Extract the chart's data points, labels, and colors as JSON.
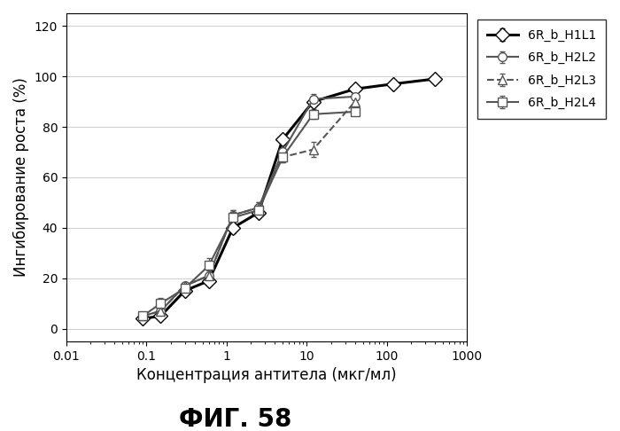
{
  "title": "ФИГ. 58",
  "xlabel": "Концентрация антитела (мкг/мл)",
  "ylabel": "Ингибирование роста (%)",
  "xlim": [
    0.01,
    1000
  ],
  "ylim": [
    -5,
    125
  ],
  "yticks": [
    0,
    20,
    40,
    60,
    80,
    100,
    120
  ],
  "xticks": [
    0.01,
    0.1,
    1,
    10,
    100,
    1000
  ],
  "xticklabels": [
    "0.01",
    "0.1",
    "1",
    "10",
    "100",
    "1000"
  ],
  "series": [
    {
      "label": "6R_b_H1L1",
      "marker": "D",
      "linestyle": "-",
      "linewidth": 2.2,
      "color": "#000000",
      "markersize": 8,
      "markerfacecolor": "white",
      "x": [
        0.09,
        0.15,
        0.3,
        0.6,
        1.2,
        2.5,
        5.0,
        12.0,
        40.0,
        120.0,
        400.0
      ],
      "y": [
        4,
        5,
        15,
        19,
        40,
        46,
        75,
        90,
        95,
        97,
        99
      ],
      "yerr": [
        1,
        1,
        1,
        1,
        2,
        2,
        2,
        2,
        1,
        1,
        1
      ]
    },
    {
      "label": "6R_b_H2L2",
      "marker": "o",
      "linestyle": "-",
      "linewidth": 1.5,
      "color": "#555555",
      "markersize": 7,
      "markerfacecolor": "white",
      "x": [
        0.09,
        0.15,
        0.3,
        0.6,
        1.2,
        2.5,
        5.0,
        12.0,
        40.0
      ],
      "y": [
        5,
        7,
        17,
        21,
        45,
        48,
        70,
        91,
        92
      ],
      "yerr": [
        1,
        1,
        1,
        2,
        2,
        2,
        2,
        2,
        1
      ]
    },
    {
      "label": "6R_b_H2L3",
      "marker": "^",
      "linestyle": "--",
      "linewidth": 1.5,
      "color": "#555555",
      "markersize": 7,
      "markerfacecolor": "white",
      "x": [
        0.09,
        0.15,
        0.3,
        0.6,
        1.2,
        2.5,
        5.0,
        12.0,
        40.0
      ],
      "y": [
        5,
        7,
        17,
        21,
        45,
        48,
        68,
        71,
        90
      ],
      "yerr": [
        1,
        1,
        1,
        2,
        2,
        2,
        2,
        3,
        1
      ]
    },
    {
      "label": "6R_b_H2L4",
      "marker": "s",
      "linestyle": "-",
      "linewidth": 1.5,
      "color": "#555555",
      "markersize": 7,
      "markerfacecolor": "white",
      "x": [
        0.09,
        0.15,
        0.3,
        0.6,
        1.2,
        2.5,
        5.0,
        12.0,
        40.0
      ],
      "y": [
        5,
        10,
        16,
        25,
        44,
        47,
        68,
        85,
        86
      ],
      "yerr": [
        1,
        2,
        1,
        3,
        2,
        2,
        2,
        2,
        1
      ]
    }
  ],
  "background_color": "#ffffff",
  "title_fontsize": 20,
  "axis_label_fontsize": 12,
  "tick_fontsize": 10,
  "legend_fontsize": 10
}
